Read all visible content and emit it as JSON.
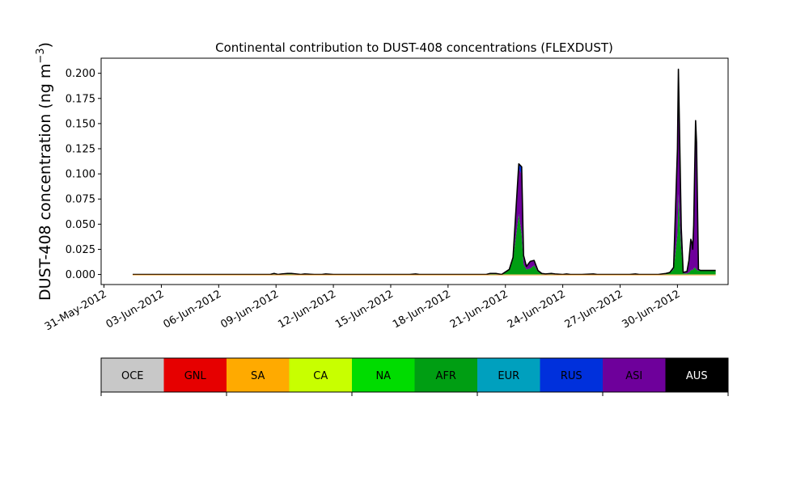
{
  "chart_data": {
    "type": "area",
    "title": "Continental contribution to DUST-408 concentrations (FLEXDUST)",
    "ylabel": "DUST-408 concentration (ng m",
    "ylabel_sup": "−3",
    "ylabel_close": ")",
    "xlabel": "",
    "x_tick_labels": [
      "31-May-2012",
      "03-Jun-2012",
      "06-Jun-2012",
      "09-Jun-2012",
      "12-Jun-2012",
      "15-Jun-2012",
      "18-Jun-2012",
      "21-Jun-2012",
      "24-Jun-2012",
      "27-Jun-2012",
      "30-Jun-2012"
    ],
    "x_tick_days": [
      0,
      3,
      6,
      9,
      12,
      15,
      18,
      21,
      24,
      27,
      30
    ],
    "xlim_days": [
      -0.15,
      32.65
    ],
    "y_tick_labels": [
      "0.000",
      "0.025",
      "0.050",
      "0.075",
      "0.100",
      "0.125",
      "0.150",
      "0.175",
      "0.200"
    ],
    "y_ticks": [
      0,
      0.025,
      0.05,
      0.075,
      0.1,
      0.125,
      0.15,
      0.175,
      0.2
    ],
    "ylim": [
      -0.01,
      0.215
    ],
    "x_days": [
      1.5,
      2,
      3,
      4,
      5,
      6,
      7,
      8,
      8.7,
      8.9,
      9.1,
      9.3,
      9.6,
      9.8,
      10.3,
      10.5,
      11,
      11.4,
      11.6,
      12,
      13,
      14,
      15,
      16,
      16.3,
      16.5,
      17,
      18,
      19,
      20,
      20.2,
      20.5,
      20.8,
      21.2,
      21.4,
      21.7,
      21.85,
      21.95,
      22.1,
      22.3,
      22.5,
      22.7,
      22.9,
      23.1,
      23.4,
      23.6,
      24,
      24.2,
      24.4,
      25,
      25.6,
      25.8,
      26,
      27,
      27.5,
      27.8,
      28,
      28.5,
      29,
      29.4,
      29.6,
      29.8,
      30,
      30.05,
      30.1,
      30.2,
      30.3,
      30.5,
      30.6,
      30.7,
      30.75,
      30.8,
      30.85,
      30.9,
      30.95,
      31,
      31.05,
      31.1,
      31.2,
      31.5,
      32
    ],
    "series": [
      {
        "name": "AFR",
        "color": "#009e13",
        "values": [
          0,
          0,
          0,
          0,
          0,
          0,
          0,
          0,
          0,
          0.001,
          0,
          0.0005,
          0.001,
          0.001,
          0,
          0.0005,
          0,
          0,
          0.0005,
          0,
          0,
          0,
          0,
          0,
          0.0005,
          0,
          0,
          0,
          0,
          0,
          0.001,
          0.001,
          0,
          0.005,
          0.015,
          0.06,
          0.04,
          0.01,
          0.005,
          0.006,
          0.009,
          0.003,
          0.001,
          0.0005,
          0.001,
          0.0005,
          0,
          0.0005,
          0,
          0,
          0.0005,
          0,
          0,
          0,
          0,
          0.0005,
          0,
          0,
          0,
          0.001,
          0.002,
          0.005,
          0.04,
          0.08,
          0.06,
          0.025,
          0.001,
          0.001,
          0.002,
          0.004,
          0.005,
          0.004,
          0.006,
          0.007,
          0.006,
          0.005,
          0.004,
          0.004,
          0.004,
          0.004,
          0.004
        ]
      },
      {
        "name": "ASI",
        "color": "#6e009b",
        "values": [
          0,
          0,
          0,
          0,
          0,
          0,
          0,
          0,
          0,
          0,
          0,
          0,
          0,
          0,
          0,
          0,
          0,
          0,
          0,
          0,
          0,
          0,
          0,
          0,
          0,
          0,
          0,
          0,
          0,
          0,
          0,
          0,
          0,
          0,
          0.002,
          0.045,
          0.06,
          0.008,
          0.003,
          0.007,
          0.005,
          0.001,
          0,
          0,
          0,
          0,
          0,
          0,
          0,
          0,
          0,
          0,
          0,
          0,
          0,
          0,
          0,
          0,
          0,
          0,
          0,
          0.001,
          0.08,
          0.12,
          0.09,
          0.02,
          0.001,
          0.002,
          0.012,
          0.028,
          0.025,
          0.02,
          0.04,
          0.09,
          0.14,
          0.12,
          0.06,
          0.001,
          0,
          0,
          0
        ]
      },
      {
        "name": "RUS",
        "color": "#0030dc",
        "values": [
          0,
          0,
          0,
          0,
          0,
          0,
          0,
          0,
          0,
          0,
          0,
          0,
          0,
          0,
          0,
          0,
          0,
          0,
          0,
          0,
          0,
          0,
          0,
          0,
          0,
          0,
          0,
          0,
          0,
          0,
          0,
          0,
          0,
          0,
          0,
          0.005,
          0.007,
          0.001,
          0,
          0,
          0,
          0,
          0,
          0,
          0,
          0,
          0,
          0,
          0,
          0,
          0,
          0,
          0,
          0,
          0,
          0,
          0,
          0,
          0,
          0,
          0,
          0.001,
          0.005,
          0.004,
          0.002,
          0.001,
          0,
          0,
          0,
          0.003,
          0.002,
          0.001,
          0.003,
          0.005,
          0.007,
          0.006,
          0.003,
          0,
          0,
          0,
          0
        ]
      },
      {
        "name": "OCE",
        "color": "#c8c8c8",
        "values": [
          0,
          0,
          0,
          0,
          0,
          0,
          0,
          0,
          0,
          0,
          0,
          0,
          0,
          0,
          0,
          0,
          0,
          0,
          0,
          0,
          0,
          0,
          0,
          0,
          0,
          0,
          0,
          0,
          0,
          0,
          0,
          0,
          0,
          0,
          0,
          0,
          0,
          0,
          0,
          0,
          0,
          0,
          0,
          0,
          0,
          0,
          0,
          0,
          0,
          0,
          0,
          0,
          0,
          0,
          0,
          0,
          0,
          0,
          0,
          0,
          0,
          0,
          0,
          0,
          0,
          0,
          0,
          0,
          0,
          0,
          0,
          0,
          0,
          0,
          0,
          0,
          0,
          0,
          0,
          0,
          0
        ]
      }
    ],
    "legend_placement": "bottom colorbar",
    "grid": false
  },
  "colorbar": {
    "labels": [
      "OCE",
      "GNL",
      "SA",
      "CA",
      "NA",
      "AFR",
      "EUR",
      "RUS",
      "ASI",
      "AUS"
    ],
    "colors": [
      "#c8c8c8",
      "#e60000",
      "#ffaa00",
      "#c8ff00",
      "#00dc00",
      "#009e13",
      "#00a0be",
      "#0030dc",
      "#6e009b",
      "#000000"
    ],
    "label_colors": [
      "#000000",
      "#000000",
      "#000000",
      "#000000",
      "#000000",
      "#000000",
      "#000000",
      "#000000",
      "#000000",
      "#ffffff"
    ]
  }
}
